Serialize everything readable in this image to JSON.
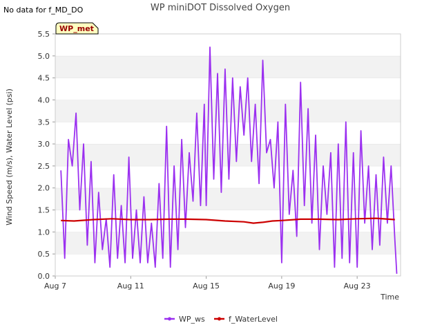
{
  "note": "No data for f_MD_DO",
  "chart_data": {
    "type": "line",
    "title": "WP miniDOT Dissolved Oxygen",
    "badge": "WP_met",
    "xlabel": "Time",
    "ylabel": "Wind Speed (m/s), Water Level (psi)",
    "ylim": [
      0.0,
      5.5
    ],
    "yticks": [
      "0.0",
      "0.5",
      "1.0",
      "1.5",
      "2.0",
      "2.5",
      "3.0",
      "3.5",
      "4.0",
      "4.5",
      "5.0",
      "5.5"
    ],
    "xlim": [
      7.0,
      25.3
    ],
    "xticks": [
      {
        "label": "Aug 7",
        "x": 7
      },
      {
        "label": "Aug 11",
        "x": 11
      },
      {
        "label": "Aug 15",
        "x": 15
      },
      {
        "label": "Aug 19",
        "x": 19
      },
      {
        "label": "Aug 23",
        "x": 23
      }
    ],
    "x_unit_note": "x values are day of August",
    "grid": "horizontal bands",
    "legend": "bottom",
    "series": [
      {
        "name": "WP_ws",
        "color": "#9b30f0",
        "x": [
          7.3,
          7.5,
          7.7,
          7.9,
          8.1,
          8.3,
          8.5,
          8.7,
          8.9,
          9.1,
          9.3,
          9.5,
          9.7,
          9.9,
          10.1,
          10.3,
          10.5,
          10.7,
          10.9,
          11.1,
          11.3,
          11.5,
          11.7,
          11.9,
          12.1,
          12.3,
          12.5,
          12.7,
          12.9,
          13.1,
          13.3,
          13.5,
          13.7,
          13.9,
          14.1,
          14.3,
          14.5,
          14.7,
          14.9,
          15.0,
          15.2,
          15.4,
          15.6,
          15.8,
          16.0,
          16.2,
          16.4,
          16.6,
          16.8,
          17.0,
          17.2,
          17.4,
          17.6,
          17.8,
          18.0,
          18.2,
          18.4,
          18.6,
          18.8,
          19.0,
          19.2,
          19.4,
          19.6,
          19.8,
          20.0,
          20.2,
          20.4,
          20.6,
          20.8,
          21.0,
          21.2,
          21.4,
          21.6,
          21.8,
          22.0,
          22.2,
          22.4,
          22.6,
          22.8,
          23.0,
          23.2,
          23.4,
          23.6,
          23.8,
          24.0,
          24.2,
          24.4,
          24.6,
          24.8,
          25.0,
          25.1
        ],
        "y": [
          2.4,
          0.4,
          3.1,
          2.5,
          3.7,
          1.5,
          3.0,
          0.7,
          2.6,
          0.3,
          1.9,
          0.6,
          1.3,
          0.2,
          2.3,
          0.4,
          1.6,
          0.3,
          2.7,
          0.4,
          1.5,
          0.3,
          1.8,
          0.3,
          1.2,
          0.2,
          2.1,
          0.4,
          3.4,
          0.2,
          2.5,
          0.6,
          3.1,
          1.1,
          2.8,
          1.7,
          3.7,
          1.6,
          3.9,
          1.6,
          5.2,
          2.2,
          4.6,
          1.9,
          4.7,
          2.2,
          4.5,
          2.6,
          4.3,
          3.2,
          4.5,
          2.6,
          3.9,
          2.1,
          4.9,
          2.8,
          3.1,
          2.0,
          3.5,
          0.3,
          3.9,
          1.4,
          2.4,
          0.9,
          4.4,
          1.6,
          3.8,
          1.2,
          3.2,
          0.6,
          2.5,
          1.4,
          2.8,
          0.2,
          3.0,
          0.4,
          3.5,
          0.3,
          2.8,
          0.2,
          3.3,
          1.2,
          2.5,
          0.6,
          2.3,
          0.7,
          2.7,
          1.2,
          2.5,
          0.8,
          0.05
        ]
      },
      {
        "name": "f_WaterLevel",
        "color": "#cc0000",
        "x": [
          7.3,
          8.0,
          9.0,
          10.0,
          11.0,
          12.0,
          13.0,
          14.0,
          15.0,
          16.0,
          17.0,
          17.5,
          18.0,
          18.5,
          19.0,
          20.0,
          21.0,
          22.0,
          23.0,
          24.0,
          25.0
        ],
        "y": [
          1.26,
          1.25,
          1.28,
          1.3,
          1.28,
          1.28,
          1.29,
          1.29,
          1.28,
          1.25,
          1.23,
          1.2,
          1.22,
          1.25,
          1.26,
          1.29,
          1.29,
          1.28,
          1.3,
          1.31,
          1.28
        ]
      }
    ]
  }
}
